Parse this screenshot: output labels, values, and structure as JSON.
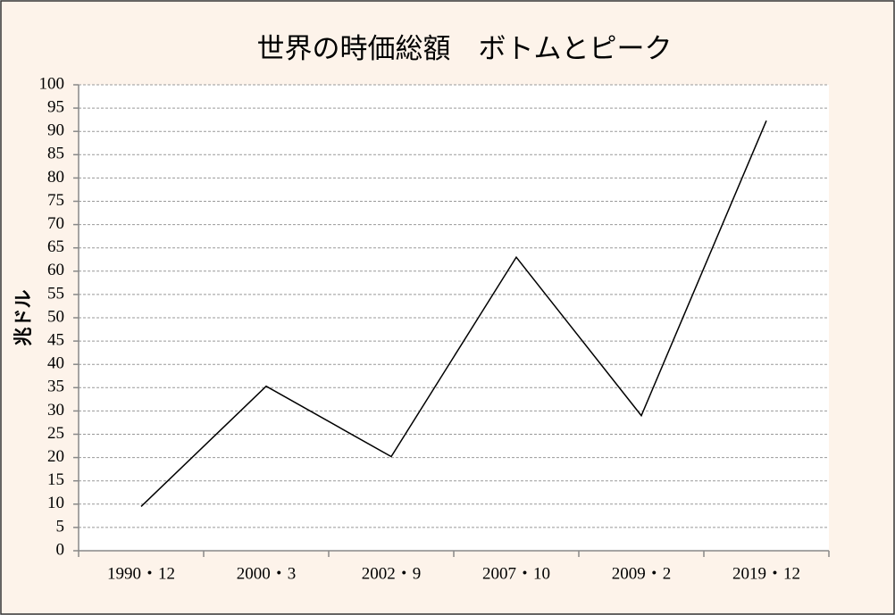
{
  "chart_data": {
    "type": "line",
    "title": "世界の時価総額　ボトムとピーク",
    "y_label": "兆ドル",
    "categories": [
      "1990・12",
      "2000・3",
      "2002・9",
      "2007・10",
      "2009・2",
      "2019・12"
    ],
    "values": [
      9.5,
      35.3,
      20.2,
      63,
      29,
      92.3
    ],
    "color": "#000000",
    "ylim": [
      0,
      100
    ],
    "yticks": [
      0,
      5,
      10,
      15,
      20,
      25,
      30,
      35,
      40,
      45,
      50,
      55,
      60,
      65,
      70,
      75,
      80,
      85,
      90,
      95,
      100
    ],
    "grid": true
  }
}
